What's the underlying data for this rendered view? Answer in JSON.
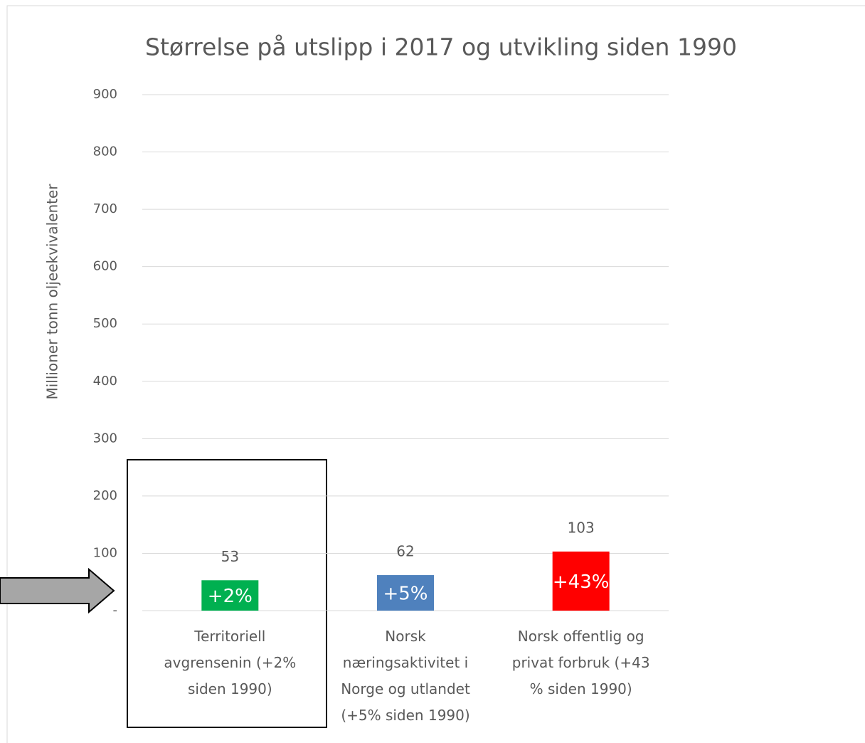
{
  "chart_data": {
    "type": "bar",
    "title": "Størrelse på utslipp i 2017 og utvikling siden 1990",
    "y_label": "Millioner tonn oljeekvivalenter",
    "categories": [
      "Territoriell\navgrensenin (+2%\nsiden 1990)",
      "Norsk\nnæringsaktivitet i\nNorge og utlandet\n(+5% siden 1990)",
      "Norsk offentlig og\nprivat forbruk (+43\n% siden 1990)"
    ],
    "values": [
      53,
      62,
      103
    ],
    "colors": [
      "#00b050",
      "#4f81bd",
      "#ff0000"
    ],
    "annotations": [
      "+2%",
      "+5%",
      "+43%"
    ],
    "ylim": [
      0,
      900
    ],
    "yticks": [
      {
        "value": 0,
        "label": "-"
      },
      100,
      200,
      300,
      400,
      500,
      600,
      700,
      800,
      900
    ],
    "grid": true
  }
}
